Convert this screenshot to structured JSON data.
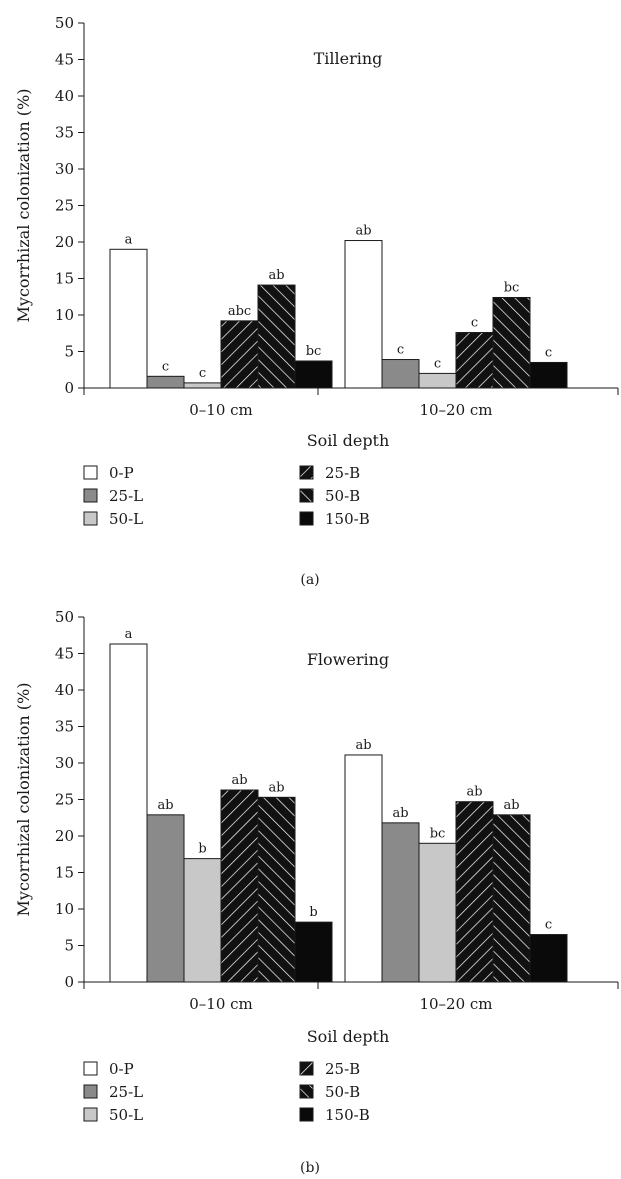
{
  "chart_data": [
    {
      "type": "bar",
      "panel_label": "(a)",
      "stage_title": "Tillering",
      "xlabel": "Soil depth",
      "ylabel": "Mycorrhizal colonization (%)",
      "ylim": [
        0,
        50
      ],
      "yticks": [
        "0",
        "5",
        "10",
        "15",
        "20",
        "25",
        "30",
        "35",
        "40",
        "45",
        "50"
      ],
      "categories": [
        "0–10 cm",
        "10–20 cm"
      ],
      "series": [
        {
          "name": "0-P",
          "values": [
            19.0,
            20.2
          ],
          "letters": [
            "a",
            "ab"
          ]
        },
        {
          "name": "25-L",
          "values": [
            1.6,
            3.9
          ],
          "letters": [
            "c",
            "c"
          ]
        },
        {
          "name": "50-L",
          "values": [
            0.7,
            2.0
          ],
          "letters": [
            "c",
            "c"
          ]
        },
        {
          "name": "25-B",
          "values": [
            9.2,
            7.6
          ],
          "letters": [
            "abc",
            "c"
          ]
        },
        {
          "name": "50-B",
          "values": [
            14.1,
            12.4
          ],
          "letters": [
            "ab",
            "bc"
          ]
        },
        {
          "name": "150-B",
          "values": [
            3.7,
            3.5
          ],
          "letters": [
            "bc",
            "c"
          ]
        }
      ],
      "legend_position": "bottom"
    },
    {
      "type": "bar",
      "panel_label": "(b)",
      "stage_title": "Flowering",
      "xlabel": "Soil depth",
      "ylabel": "Mycorrhizal colonization (%)",
      "ylim": [
        0,
        50
      ],
      "yticks": [
        "0",
        "5",
        "10",
        "15",
        "20",
        "25",
        "30",
        "35",
        "40",
        "45",
        "50"
      ],
      "categories": [
        "0–10 cm",
        "10–20 cm"
      ],
      "series": [
        {
          "name": "0-P",
          "values": [
            46.3,
            31.1
          ],
          "letters": [
            "a",
            "ab"
          ]
        },
        {
          "name": "25-L",
          "values": [
            22.9,
            21.8
          ],
          "letters": [
            "ab",
            "ab"
          ]
        },
        {
          "name": "50-L",
          "values": [
            16.9,
            19.0
          ],
          "letters": [
            "b",
            "bc"
          ]
        },
        {
          "name": "25-B",
          "values": [
            26.3,
            24.7
          ],
          "letters": [
            "ab",
            "ab"
          ]
        },
        {
          "name": "50-B",
          "values": [
            25.3,
            22.9
          ],
          "letters": [
            "ab",
            "ab"
          ]
        },
        {
          "name": "150-B",
          "values": [
            8.2,
            6.5
          ],
          "letters": [
            "b",
            "c"
          ]
        }
      ],
      "legend_position": "bottom"
    }
  ],
  "series_styles": [
    {
      "fill": "#ffffff",
      "pattern": "none"
    },
    {
      "fill": "#8a8a8a",
      "pattern": "none"
    },
    {
      "fill": "#c8c8c8",
      "pattern": "none"
    },
    {
      "fill": "#111111",
      "pattern": "diagonal-down"
    },
    {
      "fill": "#111111",
      "pattern": "diagonal-up"
    },
    {
      "fill": "#0a0a0a",
      "pattern": "none"
    }
  ]
}
